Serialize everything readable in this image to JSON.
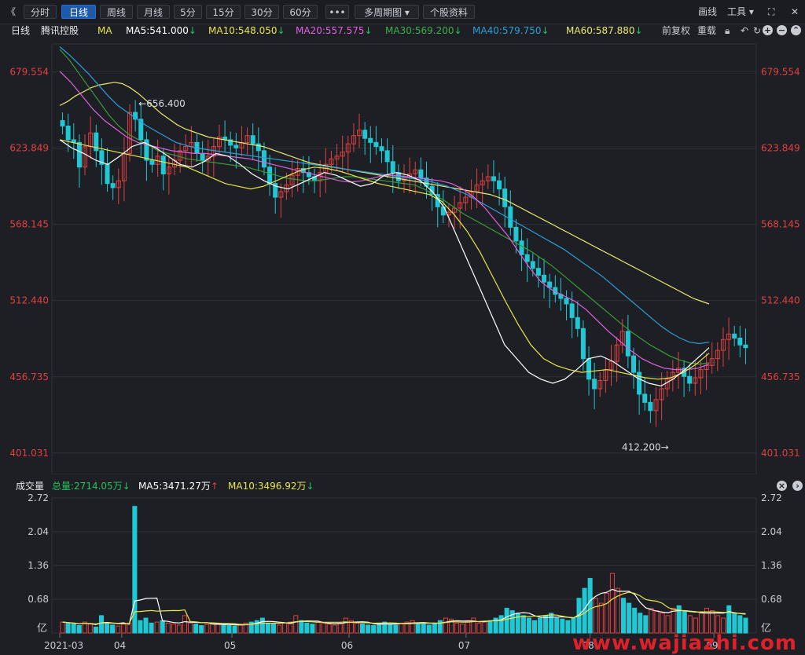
{
  "toolbar": {
    "back_glyph": "《",
    "tabs": [
      "分时",
      "日线",
      "周线",
      "月线",
      "5分",
      "15分",
      "30分",
      "60分",
      "•••",
      "多周期图 ▾",
      "个股资料"
    ],
    "active_tab": "日线",
    "draw_label": "画线",
    "tools_label": "工具 ▾",
    "expand_glyph": "⛶",
    "close_glyph": "✕"
  },
  "ma_line": {
    "period": "日线",
    "stock": "腾讯控股",
    "ma_label": "MA",
    "ma5": "MA5:541.000",
    "ma10": "MA10:548.050",
    "ma20": "MA20:557.575",
    "ma30": "MA30:569.200",
    "ma40": "MA40:579.750",
    "ma60": "MA60:587.880",
    "down_arrow": "↓",
    "adjust": "前复权",
    "reset": "重载"
  },
  "colors": {
    "up": "#e04040",
    "down": "#21c8d4",
    "ma5": "#ffffff",
    "ma10": "#e6e64a",
    "ma20": "#e060e0",
    "ma30": "#3a9a3a",
    "ma40": "#2a9fd8",
    "ma60": "#e8e870",
    "axis_text": "#e04040",
    "grid": "#2e3038"
  },
  "volume_info": {
    "title": "成交量",
    "total": "总量:2714.05万",
    "ma5": "MA5:3471.27万",
    "ma10": "MA10:3496.92万",
    "ma5_arrow": "↑",
    "down_arrow": "↓"
  },
  "watermark": "www.wajiazhi.com",
  "chart_data": {
    "type": "candlestick",
    "price_ticks": [
      "679.554",
      "623.849",
      "568.145",
      "512.440",
      "456.735",
      "401.031"
    ],
    "price_tick_values": [
      679.554,
      623.849,
      568.145,
      512.44,
      456.735,
      401.031
    ],
    "volume_ticks": [
      "2.72",
      "2.04",
      "1.36",
      "0.68"
    ],
    "volume_unit": "亿",
    "x_ticks": [
      "2021-03",
      "04",
      "05",
      "06",
      "07",
      "08",
      "09"
    ],
    "annotations": [
      {
        "text": "←656.400",
        "value": 656.4
      },
      {
        "text": "412.200→",
        "value": 412.2
      }
    ],
    "ylim": [
      390,
      700
    ],
    "closes": [
      640,
      630,
      628,
      610,
      625,
      635,
      622,
      612,
      598,
      595,
      600,
      620,
      650,
      645,
      630,
      615,
      612,
      618,
      605,
      610,
      615,
      622,
      625,
      628,
      620,
      615,
      618,
      625,
      632,
      630,
      626,
      624,
      628,
      633,
      627,
      622,
      610,
      598,
      588,
      592,
      597,
      604,
      609,
      606,
      603,
      600,
      606,
      612,
      616,
      618,
      621,
      627,
      633,
      637,
      631,
      628,
      625,
      622,
      614,
      606,
      600,
      603,
      605,
      608,
      602,
      596,
      590,
      581,
      575,
      577,
      580,
      584,
      588,
      592,
      597,
      600,
      603,
      600,
      594,
      581,
      566,
      556,
      546,
      541,
      536,
      531,
      526,
      522,
      517,
      514,
      510,
      500,
      492,
      470,
      455,
      448,
      454,
      462,
      468,
      480,
      490,
      472,
      460,
      444,
      438,
      432,
      440,
      448,
      455,
      460,
      463,
      457,
      452,
      456,
      462,
      465,
      470,
      476,
      484,
      488,
      485,
      480,
      478
    ],
    "volumes": [
      0.22,
      0.2,
      0.18,
      0.15,
      0.22,
      0.18,
      0.12,
      0.35,
      0.2,
      0.16,
      0.14,
      0.18,
      0.2,
      2.55,
      0.25,
      0.3,
      0.2,
      0.22,
      0.25,
      0.2,
      0.18,
      0.16,
      0.35,
      0.2,
      0.18,
      0.15,
      0.17,
      0.2,
      0.18,
      0.16,
      0.15,
      0.14,
      0.18,
      0.2,
      0.22,
      0.25,
      0.3,
      0.2,
      0.18,
      0.16,
      0.2,
      0.22,
      0.35,
      0.25,
      0.2,
      0.18,
      0.22,
      0.2,
      0.18,
      0.16,
      0.2,
      0.3,
      0.25,
      0.2,
      0.18,
      0.16,
      0.15,
      0.2,
      0.22,
      0.18,
      0.16,
      0.2,
      0.22,
      0.25,
      0.2,
      0.18,
      0.16,
      0.2,
      0.25,
      0.3,
      0.28,
      0.2,
      0.18,
      0.25,
      0.3,
      0.2,
      0.22,
      0.25,
      0.3,
      0.35,
      0.5,
      0.45,
      0.4,
      0.35,
      0.3,
      0.25,
      0.3,
      0.35,
      0.4,
      0.3,
      0.28,
      0.25,
      0.3,
      0.7,
      0.9,
      1.1,
      0.7,
      0.6,
      0.8,
      1.2,
      0.9,
      0.7,
      0.6,
      0.5,
      0.4,
      0.35,
      0.5,
      0.45,
      0.4,
      0.35,
      0.5,
      0.55,
      0.45,
      0.35,
      0.3,
      0.4,
      0.5,
      0.45,
      0.35,
      0.3,
      0.55,
      0.4,
      0.35,
      0.3
    ],
    "ma_series": [
      {
        "name": "MA60",
        "color_key": "ma60",
        "values": [
          655,
          658,
          662,
          665,
          668,
          670,
          671,
          672,
          671,
          668,
          664,
          659,
          654,
          649,
          645,
          641,
          638,
          636,
          634,
          632,
          631,
          630,
          629,
          628,
          627,
          626,
          625,
          623,
          621,
          619,
          617,
          615,
          613,
          612,
          611,
          610,
          609,
          608,
          607,
          606,
          605,
          604,
          603,
          602,
          601,
          600,
          599,
          598,
          597,
          596,
          595,
          594,
          593,
          592,
          591,
          590,
          588,
          586,
          583,
          580,
          577,
          574,
          571,
          568,
          565,
          562,
          559,
          556,
          553,
          550,
          547,
          544,
          541,
          538,
          535,
          532,
          529,
          526,
          523,
          520,
          517,
          514,
          512,
          510
        ]
      },
      {
        "name": "MA40",
        "color_key": "ma40",
        "values": [
          698,
          692,
          685,
          678,
          670,
          662,
          655,
          650,
          645,
          640,
          636,
          632,
          628,
          626,
          624,
          623,
          622,
          621,
          620,
          619,
          618,
          617,
          616,
          615,
          614,
          613,
          612,
          611,
          610,
          609,
          608,
          607,
          606,
          605,
          604,
          603,
          602,
          601,
          600,
          598,
          596,
          593,
          590,
          586,
          582,
          578,
          574,
          570,
          566,
          562,
          558,
          554,
          550,
          545,
          540,
          535,
          530,
          524,
          518,
          512,
          506,
          500,
          494,
          489,
          485,
          482,
          481,
          482
        ]
      },
      {
        "name": "MA30",
        "color_key": "ma30",
        "values": [
          696,
          688,
          678,
          668,
          658,
          648,
          640,
          634,
          630,
          626,
          622,
          620,
          618,
          616,
          615,
          614,
          613,
          612,
          611,
          610,
          608,
          606,
          604,
          602,
          601,
          600,
          600,
          601,
          602,
          603,
          603,
          602,
          601,
          600,
          599,
          598,
          597,
          594,
          590,
          586,
          581,
          576,
          572,
          568,
          564,
          560,
          556,
          552,
          548,
          543,
          538,
          532,
          526,
          520,
          514,
          508,
          502,
          496,
          490,
          485,
          480,
          476,
          472,
          469,
          467,
          466,
          467
        ]
      },
      {
        "name": "MA20",
        "color_key": "ma20",
        "values": [
          680,
          672,
          662,
          652,
          644,
          638,
          632,
          628,
          626,
          624,
          622,
          621,
          620,
          620,
          619,
          618,
          617,
          616,
          614,
          612,
          610,
          608,
          606,
          604,
          602,
          600,
          599,
          600,
          602,
          604,
          604,
          603,
          602,
          601,
          600,
          598,
          594,
          588,
          580,
          570,
          560,
          548,
          536,
          526,
          520,
          516,
          512,
          506,
          498,
          490,
          483,
          476,
          470,
          466,
          463,
          462,
          462,
          463,
          466
        ]
      },
      {
        "name": "MA10",
        "color_key": "ma10",
        "values": [
          630,
          628,
          626,
          624,
          622,
          620,
          618,
          616,
          614,
          612,
          610,
          606,
          602,
          598,
          596,
          594,
          596,
          600,
          604,
          608,
          610,
          609,
          607,
          604,
          601,
          598,
          596,
          594,
          592,
          590,
          585,
          575,
          563,
          548,
          530,
          512,
          495,
          480,
          470,
          465,
          462,
          460,
          461,
          462,
          460,
          458,
          456,
          455,
          456,
          460,
          466,
          474
        ]
      },
      {
        "name": "MA5",
        "color_key": "ma5",
        "values": [
          630,
          624,
          620,
          615,
          612,
          618,
          625,
          628,
          624,
          618,
          612,
          610,
          614,
          620,
          618,
          612,
          605,
          600,
          596,
          594,
          598,
          602,
          606,
          604,
          600,
          596,
          598,
          604,
          606,
          604,
          600,
          592,
          580,
          560,
          540,
          520,
          500,
          480,
          470,
          460,
          455,
          452,
          455,
          462,
          470,
          472,
          468,
          462,
          456,
          452,
          450,
          455,
          462,
          470,
          478
        ]
      }
    ]
  }
}
